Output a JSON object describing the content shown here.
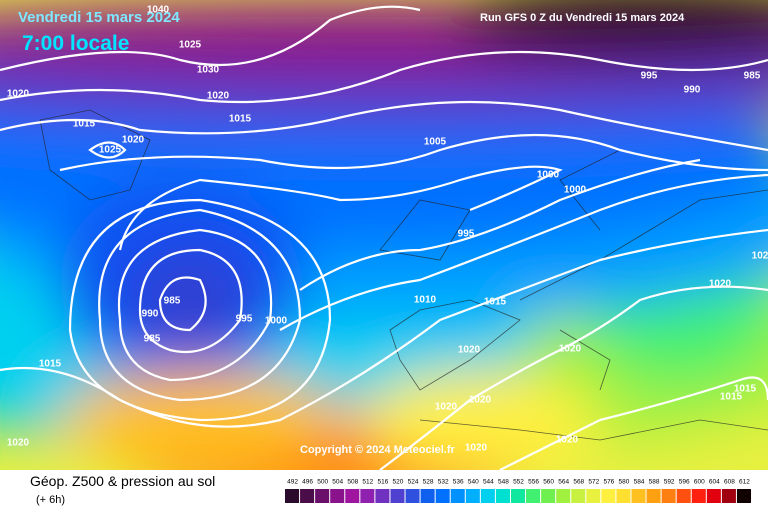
{
  "header": {
    "date": "Vendredi 15 mars 2024",
    "time": "7:00 locale",
    "run": "Run GFS 0 Z du Vendredi 15 mars 2024"
  },
  "copyright": "Copyright © 2024 Meteociel.fr",
  "footer": {
    "title": "Géop. Z500 & pression au sol",
    "subtitle": "(+ 6h)"
  },
  "isobar_labels": [
    "1040",
    "1025",
    "1030",
    "1020",
    "1020",
    "1015",
    "1020",
    "1025",
    "1015",
    "1005",
    "995",
    "990",
    "985",
    "1000",
    "1000",
    "995",
    "1010",
    "1015",
    "985",
    "990",
    "995",
    "1000",
    "985",
    "1020",
    "1020",
    "1020",
    "102",
    "1015",
    "1015",
    "1015",
    "1020",
    "1020",
    "1020",
    "1020",
    "1020"
  ],
  "legend": {
    "ticks": [
      492,
      496,
      500,
      504,
      508,
      512,
      516,
      520,
      524,
      528,
      532,
      536,
      540,
      544,
      548,
      552,
      556,
      560,
      564,
      568,
      572,
      576,
      580,
      584,
      588,
      592,
      596,
      600,
      604,
      608,
      612
    ],
    "colors": [
      "#2b0b2b",
      "#4a0d4a",
      "#6a0f6a",
      "#8a128a",
      "#a015a0",
      "#9020b0",
      "#7030c0",
      "#5040d0",
      "#3050e0",
      "#1060f0",
      "#0070ff",
      "#0090ff",
      "#00b0ff",
      "#00d0f0",
      "#00e0d0",
      "#10e8a0",
      "#40f070",
      "#70f050",
      "#a0f040",
      "#c8f040",
      "#e8f040",
      "#fff040",
      "#ffe030",
      "#ffc020",
      "#ffa010",
      "#ff8010",
      "#ff5010",
      "#ff2010",
      "#e00010",
      "#a00010",
      "#100000"
    ]
  }
}
